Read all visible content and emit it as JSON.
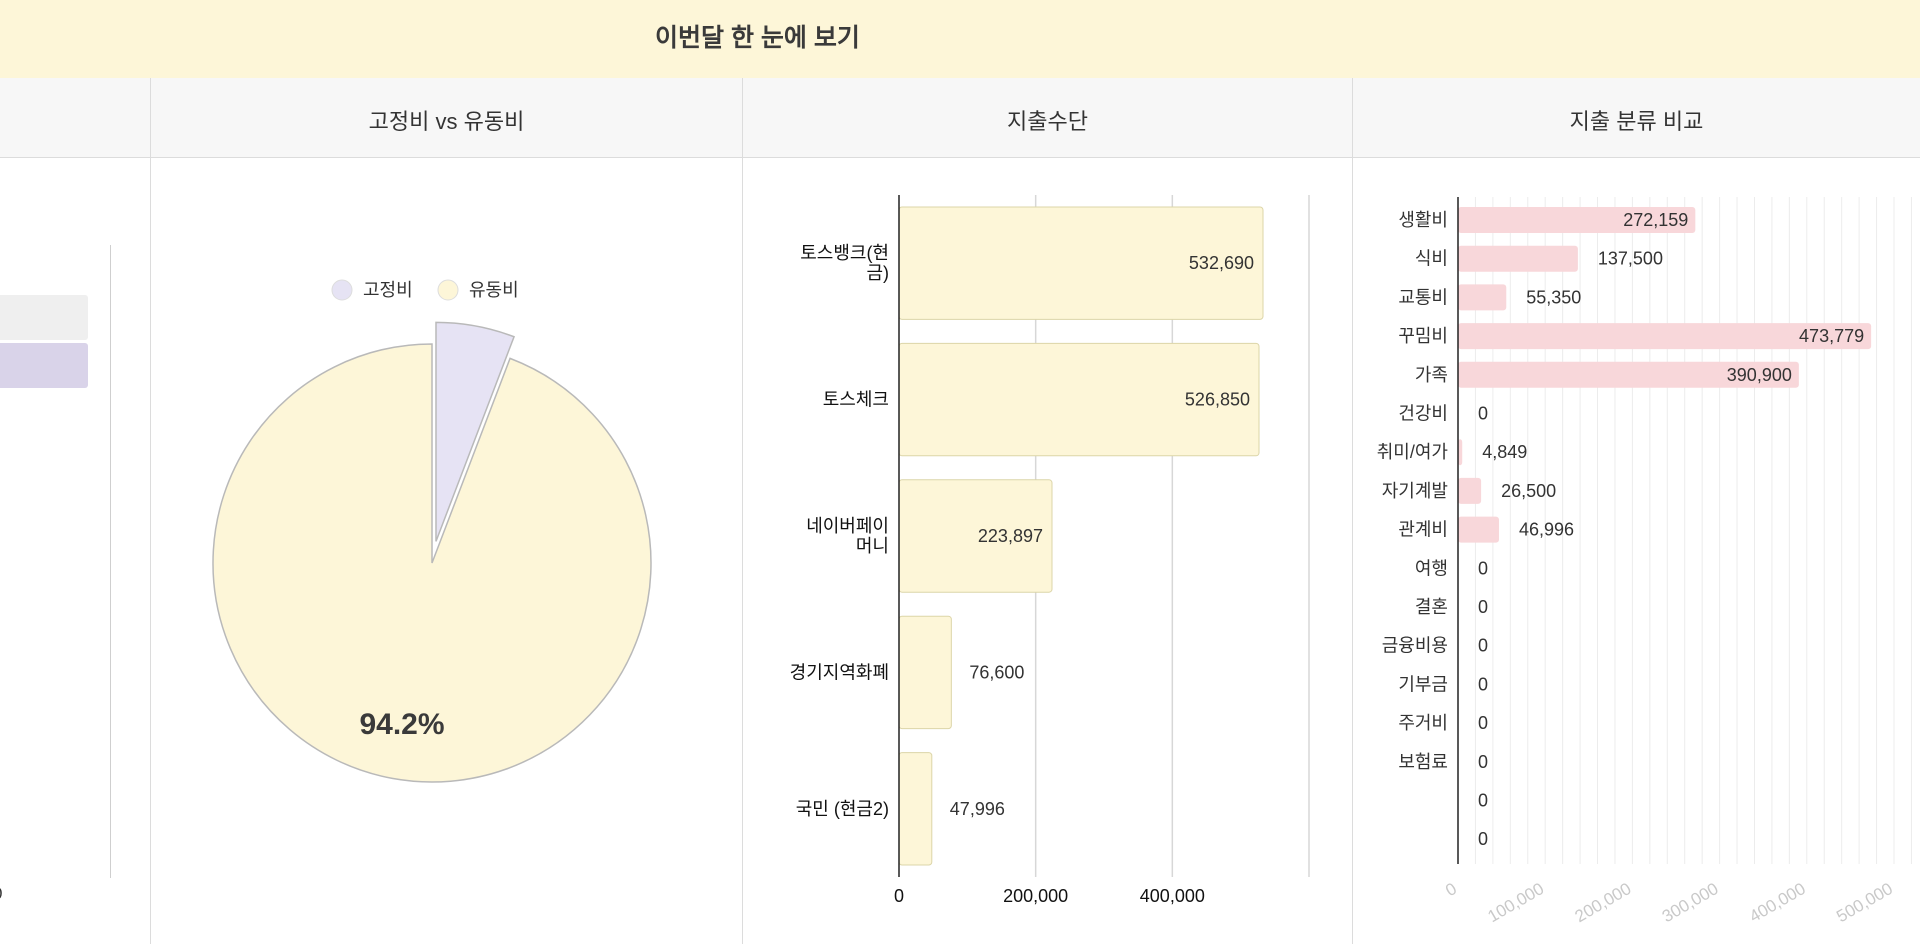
{
  "header": {
    "title": "이번달 한 눈에 보기"
  },
  "panels": {
    "fixed_vs_variable": {
      "title": "고정비 vs 유동비"
    },
    "payment_methods": {
      "title": "지출수단"
    },
    "categories": {
      "title": "지출 분류 비교"
    }
  },
  "left_partial": {
    "axis_tick": "0"
  },
  "chart_data": [
    {
      "id": "fixed-vs-variable",
      "type": "pie",
      "title": "고정비 vs 유동비",
      "legend_position": "top",
      "categories": [
        "고정비",
        "유동비"
      ],
      "values": [
        5.8,
        94.2
      ],
      "data_labels": [
        "",
        "94.2%"
      ],
      "colors": [
        "#e6e3f4",
        "#fdf6d8"
      ],
      "exploded": "고정비"
    },
    {
      "id": "payment-methods",
      "type": "bar",
      "orientation": "horizontal",
      "title": "지출수단",
      "categories": [
        [
          "토스뱅크(현",
          "금)"
        ],
        [
          "토스체크"
        ],
        [
          "네이버페이",
          "머니"
        ],
        [
          "경기지역화폐"
        ],
        [
          "국민 (현금2)"
        ]
      ],
      "values": [
        532690,
        526850,
        223897,
        76600,
        47996
      ],
      "value_labels": [
        "532,690",
        "526,850",
        "223,897",
        "76,600",
        "47,996"
      ],
      "xlim": [
        0,
        600000
      ],
      "xticks": [
        0,
        200000,
        400000
      ],
      "xtick_labels": [
        "0",
        "200,000",
        "400,000"
      ],
      "grid": true,
      "color": "#fdf6d8"
    },
    {
      "id": "category-comparison",
      "type": "bar",
      "orientation": "horizontal",
      "title": "지출 분류 비교",
      "categories": [
        "생활비",
        "식비",
        "교통비",
        "꾸밈비",
        "가족",
        "건강비",
        "취미/여가",
        "자기계발",
        "관계비",
        "여행",
        "결혼",
        "금융비용",
        "기부금",
        "주거비",
        "보험료",
        "",
        ""
      ],
      "values": [
        272159,
        137500,
        55350,
        473779,
        390900,
        0,
        4849,
        26500,
        46996,
        0,
        0,
        0,
        0,
        0,
        0,
        0,
        0
      ],
      "value_labels": [
        "272,159",
        "137,500",
        "55,350",
        "473,779",
        "390,900",
        "0",
        "4,849",
        "26,500",
        "46,996",
        "0",
        "0",
        "0",
        "0",
        "0",
        "0",
        "0",
        "0"
      ],
      "xlim": [
        0,
        500000
      ],
      "xticks": [
        0,
        100000,
        200000,
        300000,
        400000,
        500000
      ],
      "xtick_labels": [
        "0",
        "100,000",
        "200,000",
        "300,000",
        "400,000",
        "500,000"
      ],
      "grid": true,
      "color": "#f8d7da"
    }
  ]
}
